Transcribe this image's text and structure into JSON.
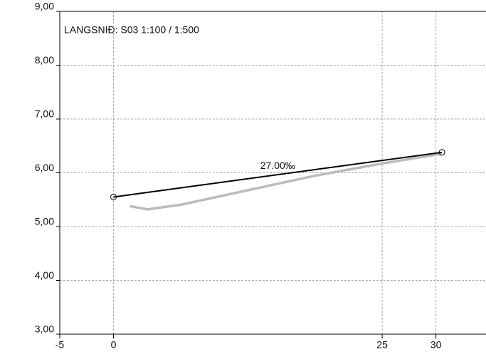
{
  "chart_data": {
    "type": "line",
    "title": "LANGSNIÐ: S03 1:100 / 1:500",
    "xlim": [
      -5,
      34.66
    ],
    "ylim": [
      3,
      9
    ],
    "xticks": [
      -5,
      0,
      25,
      30
    ],
    "yticks": [
      {
        "value": 3,
        "label": "3,00"
      },
      {
        "value": 4,
        "label": "4,00"
      },
      {
        "value": 5,
        "label": "5,00"
      },
      {
        "value": 6,
        "label": "6,00"
      },
      {
        "value": 7,
        "label": "7,00"
      },
      {
        "value": 8,
        "label": "8,00"
      },
      {
        "value": 9,
        "label": "9,00"
      }
    ],
    "grid": true,
    "series": [
      {
        "color": "#bbbbbb",
        "x": [
          1.52,
          3.17,
          6.35,
          18.6,
          25.2,
          30.5
        ],
        "values": [
          5.38,
          5.32,
          5.41,
          5.94,
          6.18,
          6.35
        ]
      },
      {
        "color": "#000000",
        "x": [
          0,
          30.56
        ],
        "values": [
          5.55,
          6.38
        ],
        "label": "27.00‰"
      }
    ]
  }
}
